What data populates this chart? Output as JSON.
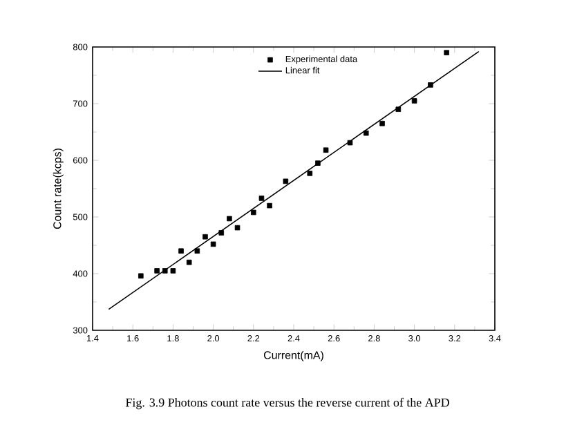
{
  "chart_data": {
    "type": "scatter",
    "xlabel": "Current(mA)",
    "ylabel": "Count rate(kcps)",
    "annotations": [
      "Fig. 3.9 Photons count rate versus the reverse current of the APD"
    ],
    "xlim": [
      1.4,
      3.4
    ],
    "xticks": [
      1.4,
      1.6,
      1.8,
      {
        "value": 2,
        "label": "2.0"
      },
      2.2,
      2.4,
      2.6,
      2.8,
      {
        "value": 3,
        "label": "3.0"
      },
      3.2,
      3.4
    ],
    "ylim": [
      300,
      800
    ],
    "yticks": [
      300,
      400,
      500,
      600,
      700,
      800
    ],
    "legend": "top right",
    "grid": false,
    "series": [
      {
        "name": "Experimental data",
        "marker": "square",
        "color": "#000000",
        "x": [
          1.64,
          1.72,
          1.76,
          1.8,
          1.84,
          1.88,
          1.92,
          1.96,
          2.0,
          2.04,
          2.08,
          2.12,
          2.2,
          2.24,
          2.28,
          2.36,
          2.48,
          2.52,
          2.56,
          2.68,
          2.76,
          2.84,
          2.92,
          3.0,
          3.08,
          3.16
        ],
        "values": [
          396,
          405,
          405,
          405,
          440,
          420,
          440,
          465,
          452,
          472,
          497,
          481,
          508,
          533,
          520,
          563,
          577,
          595,
          618,
          631,
          648,
          665,
          690,
          705,
          733,
          790
        ]
      },
      {
        "name": "Linear fit",
        "type": "line",
        "marker": "none",
        "line_style": "solid",
        "color": "#000000",
        "x": [
          1.48,
          3.32
        ],
        "values": [
          337,
          792
        ]
      }
    ]
  }
}
